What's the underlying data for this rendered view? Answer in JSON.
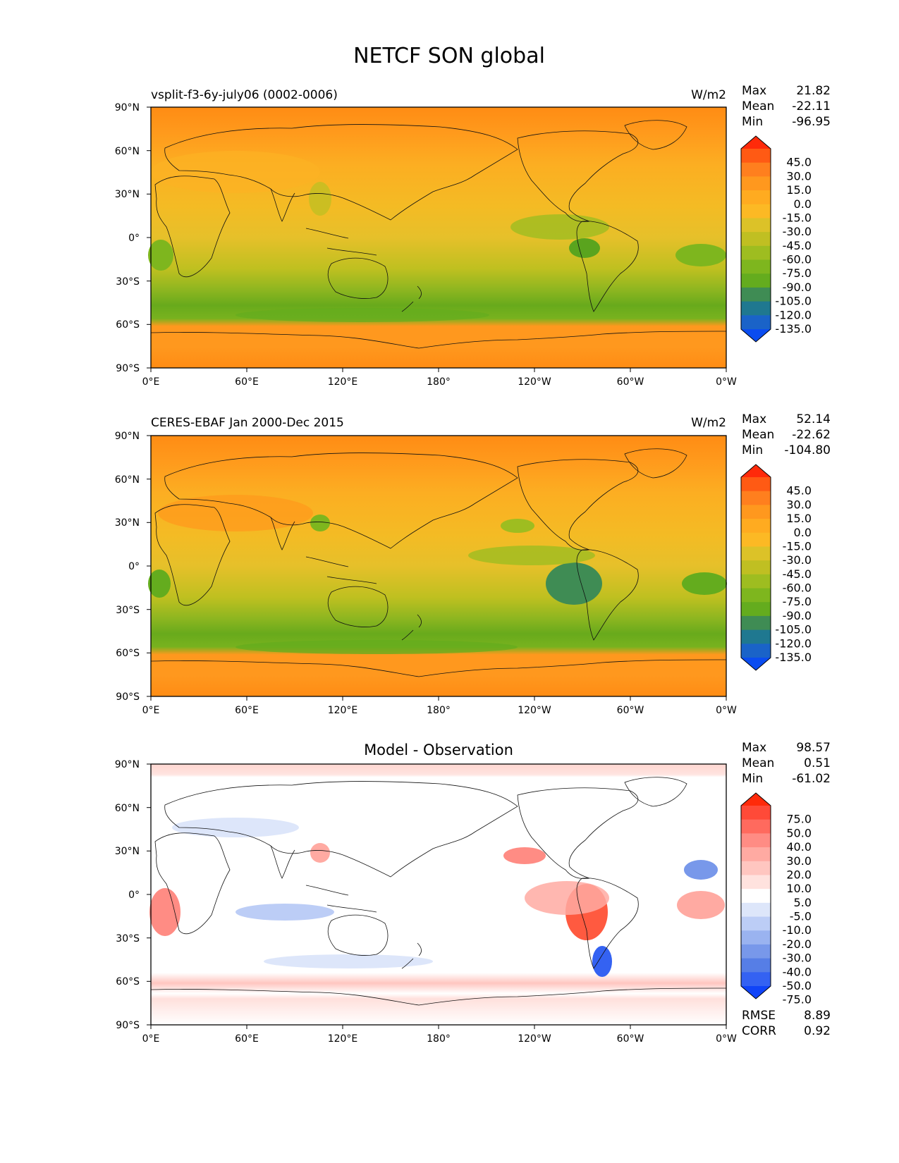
{
  "title": "NETCF SON global",
  "chart_data": [
    {
      "type": "heatmap",
      "left_title": "vsplit-f3-6y-july06 (0002-0006)",
      "center_title": "",
      "units": "W/m2",
      "stats": [
        {
          "label": "Max",
          "value": "21.82"
        },
        {
          "label": "Mean",
          "value": "-22.11"
        },
        {
          "label": "Min",
          "value": "-96.95"
        }
      ],
      "colorbar": {
        "labels": [
          "45.0",
          "30.0",
          "15.0",
          "0.0",
          "-15.0",
          "-30.0",
          "-45.0",
          "-60.0",
          "-75.0",
          "-90.0",
          "-105.0",
          "-120.0",
          "-135.0"
        ],
        "colors": [
          "#ff2a0a",
          "#ff5a14",
          "#ff7f1e",
          "#ff981e",
          "#ffab20",
          "#fcb924",
          "#dcc228",
          "#c0bf22",
          "#9ebd20",
          "#7eb61e",
          "#64ac1e",
          "#3f8c54",
          "#1f7890",
          "#1a63c8",
          "#0a4cf0"
        ]
      },
      "xticks": [
        "0°E",
        "60°E",
        "120°E",
        "180°",
        "120°W",
        "60°W",
        "0°W"
      ],
      "yticks": [
        "90°N",
        "60°N",
        "30°N",
        "0°",
        "30°S",
        "60°S",
        "90°S"
      ],
      "footer_stats": []
    },
    {
      "type": "heatmap",
      "left_title": "CERES-EBAF Jan 2000-Dec 2015",
      "center_title": "",
      "units": "W/m2",
      "stats": [
        {
          "label": "Max",
          "value": "52.14"
        },
        {
          "label": "Mean",
          "value": "-22.62"
        },
        {
          "label": "Min",
          "value": "-104.80"
        }
      ],
      "colorbar": {
        "labels": [
          "45.0",
          "30.0",
          "15.0",
          "0.0",
          "-15.0",
          "-30.0",
          "-45.0",
          "-60.0",
          "-75.0",
          "-90.0",
          "-105.0",
          "-120.0",
          "-135.0"
        ],
        "colors": [
          "#ff2a0a",
          "#ff5a14",
          "#ff7f1e",
          "#ff981e",
          "#ffab20",
          "#fcb924",
          "#dcc228",
          "#c0bf22",
          "#9ebd20",
          "#7eb61e",
          "#64ac1e",
          "#3f8c54",
          "#1f7890",
          "#1a63c8",
          "#0a4cf0"
        ]
      },
      "xticks": [
        "0°E",
        "60°E",
        "120°E",
        "180°",
        "120°W",
        "60°W",
        "0°W"
      ],
      "yticks": [
        "90°N",
        "60°N",
        "30°N",
        "0°",
        "30°S",
        "60°S",
        "90°S"
      ],
      "footer_stats": []
    },
    {
      "type": "heatmap",
      "left_title": "",
      "center_title": "Model - Observation",
      "units": "",
      "stats": [
        {
          "label": "Max",
          "value": "98.57"
        },
        {
          "label": "Mean",
          "value": "0.51"
        },
        {
          "label": "Min",
          "value": "-61.02"
        }
      ],
      "colorbar": {
        "labels": [
          "75.0",
          "50.0",
          "40.0",
          "30.0",
          "20.0",
          "10.0",
          "5.0",
          "-5.0",
          "-10.0",
          "-20.0",
          "-30.0",
          "-40.0",
          "-50.0",
          "-75.0"
        ],
        "colors": [
          "#ff2a0a",
          "#ff4a38",
          "#ff6a5e",
          "#ff8c84",
          "#ffaaa2",
          "#ffc6c0",
          "#ffe2de",
          "#ffffff",
          "#dde6fa",
          "#bccdf6",
          "#9ab3f0",
          "#7898ea",
          "#567ee6",
          "#3462f2",
          "#1044f8"
        ]
      },
      "xticks": [
        "0°E",
        "60°E",
        "120°E",
        "180°",
        "120°W",
        "60°W",
        "0°W"
      ],
      "yticks": [
        "90°N",
        "60°N",
        "30°N",
        "0°",
        "30°S",
        "60°S",
        "90°S"
      ],
      "footer_stats": [
        {
          "label": "RMSE",
          "value": "8.89"
        },
        {
          "label": "CORR",
          "value": "0.92"
        }
      ]
    }
  ]
}
